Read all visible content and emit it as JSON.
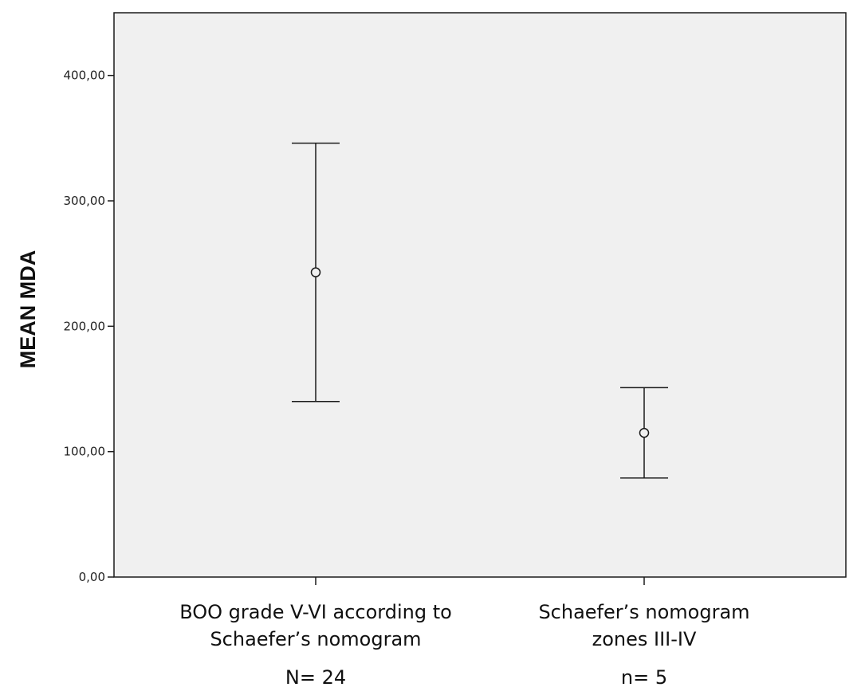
{
  "chart_data": {
    "type": "scatter",
    "subtype": "error-bar",
    "title": "",
    "xlabel": "",
    "ylabel": "MEAN MDA",
    "ylim": [
      0,
      450
    ],
    "yticks": [
      "0,00",
      "100,00",
      "200,00",
      "300,00",
      "400,00"
    ],
    "ytick_values": [
      0,
      100,
      200,
      300,
      400
    ],
    "grid": false,
    "colors": {
      "plot_bg": "#f0f0f0",
      "stroke": "#1a1a1a"
    },
    "categories": [
      {
        "label_lines": [
          "BOO grade V-VI according to",
          "Schaefer’s nomogram"
        ],
        "count_label": "N= 24",
        "mean": 243,
        "lower": 140,
        "upper": 346
      },
      {
        "label_lines": [
          "Schaefer’s nomogram",
          "zones III-IV"
        ],
        "count_label": "n= 5",
        "mean": 115,
        "lower": 79,
        "upper": 151
      }
    ]
  }
}
